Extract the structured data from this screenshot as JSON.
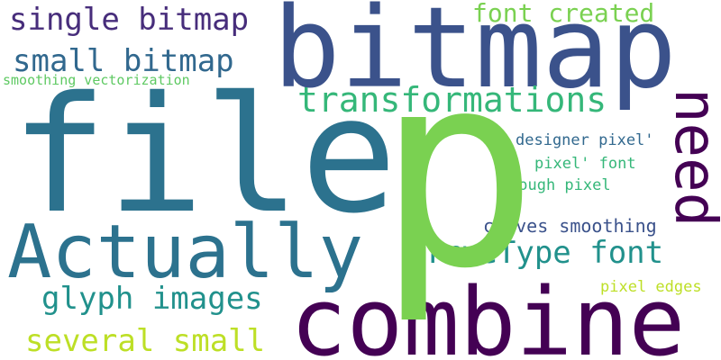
{
  "words": {
    "p": {
      "text": "p",
      "color": "#7ad151"
    },
    "file": {
      "text": "file",
      "color": "#2c728e"
    },
    "bitmap": {
      "text": "bitmap",
      "color": "#3b528b"
    },
    "combine": {
      "text": "combine",
      "color": "#440154"
    },
    "actually": {
      "text": "Actually",
      "color": "#2c728e"
    },
    "need": {
      "text": "need",
      "color": "#440154"
    },
    "transformations": {
      "text": "transformations",
      "color": "#35b779"
    },
    "single_bitmap": {
      "text": "single bitmap",
      "color": "#472d7b"
    },
    "small_bitmap": {
      "text": "small bitmap",
      "color": "#31688e"
    },
    "font_created": {
      "text": "font created",
      "color": "#7ad151"
    },
    "truetype_font": {
      "text": "TrueType font",
      "color": "#21918c"
    },
    "glyph_images": {
      "text": "glyph images",
      "color": "#21918c"
    },
    "several_small": {
      "text": "several small",
      "color": "#bddf26"
    },
    "smoothing_vectorization": {
      "text": "smoothing vectorization",
      "color": "#5ec962"
    },
    "designer_pixel": {
      "text": "designer pixel'",
      "color": "#31688e"
    },
    "pixel_font": {
      "text": "pixel' font",
      "color": "#35b779"
    },
    "rough_pixel": {
      "text": "rough pixel",
      "color": "#35b779"
    },
    "curves_smoothing": {
      "text": "curves smoothing",
      "color": "#3b528b"
    },
    "pixel_edges": {
      "text": "pixel edges",
      "color": "#bddf26"
    }
  }
}
